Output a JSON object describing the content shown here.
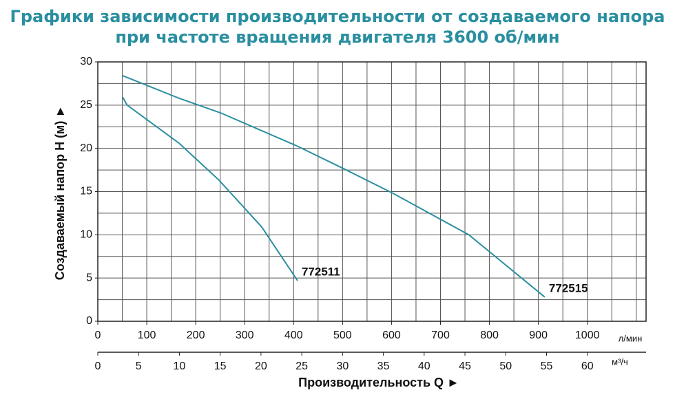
{
  "chart_data": {
    "type": "line",
    "title": [
      "Графики зависимости производительности от создаваемого напора",
      "при частоте вращения двигателя 3600 об/мин"
    ],
    "xlabel": "Производительность Q ►",
    "ylabel": "Создаваемый напор H (м) ►",
    "xunit": "л/мин",
    "x2unit": "м³/ч",
    "xlim": [
      0,
      1120
    ],
    "xticks": [
      0,
      100,
      200,
      300,
      400,
      500,
      600,
      700,
      800,
      900,
      1000
    ],
    "x2lim": [
      0,
      67.2
    ],
    "x2ticks": [
      0,
      5,
      10,
      15,
      20,
      25,
      30,
      35,
      40,
      45,
      50,
      55,
      60
    ],
    "ylim": [
      0,
      30
    ],
    "yticks": [
      0,
      5,
      10,
      15,
      20,
      25,
      30
    ],
    "grid": true,
    "xminor": 50,
    "yminor": 2.5,
    "series": [
      {
        "name": "772511",
        "color": "#2a8fa0",
        "x": [
          51,
          60,
          166,
          248,
          335,
          408
        ],
        "values": [
          25.9,
          25.0,
          20.6,
          16.3,
          10.9,
          4.7
        ]
      },
      {
        "name": "772515",
        "color": "#2a8fa0",
        "x": [
          51,
          166,
          251,
          406,
          504,
          603,
          758,
          913
        ],
        "values": [
          28.4,
          25.8,
          24.1,
          20.3,
          17.6,
          14.8,
          10.0,
          2.8
        ]
      }
    ]
  }
}
